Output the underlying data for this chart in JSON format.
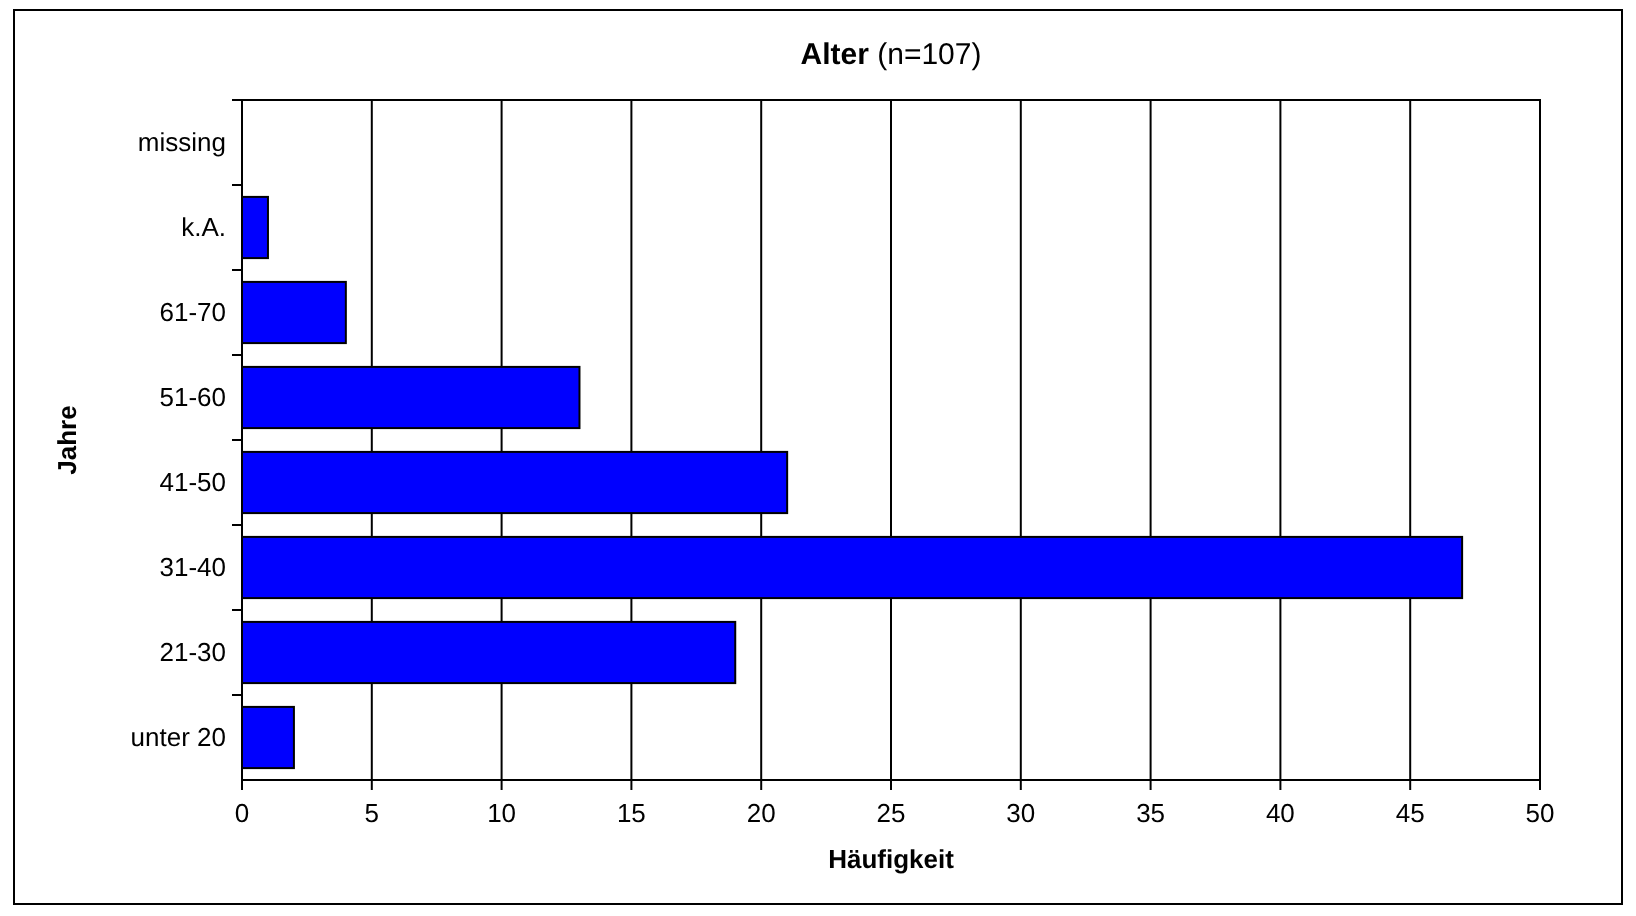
{
  "chart_data": {
    "type": "bar",
    "orientation": "horizontal",
    "title": "Alter (n=107)",
    "xlabel": "Häufigkeit",
    "ylabel": "Jahre",
    "categories": [
      "missing",
      "k.A.",
      "61-70",
      "51-60",
      "41-50",
      "31-40",
      "21-30",
      "unter 20"
    ],
    "values": [
      0,
      1,
      4,
      13,
      21,
      47,
      19,
      2
    ],
    "color": "#0000ff",
    "xlim": [
      0,
      50
    ],
    "xticks": [
      0,
      5,
      10,
      15,
      20,
      25,
      30,
      35,
      40,
      45,
      50
    ],
    "grid": "x"
  }
}
